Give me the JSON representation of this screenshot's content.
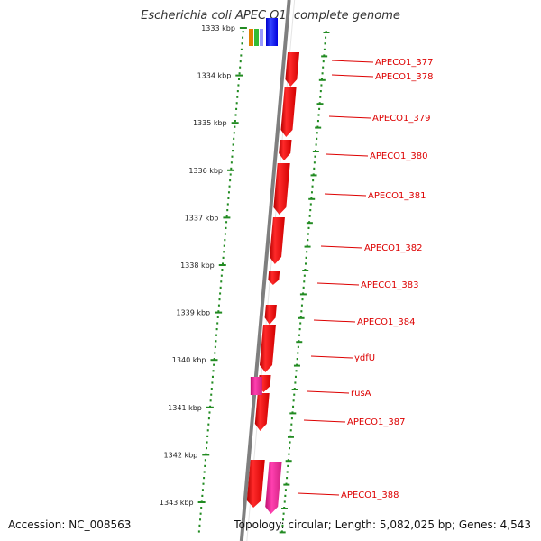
{
  "title": "Escherichia coli APEC O1, complete genome",
  "footer": {
    "accession": "Accession: NC_008563",
    "summary": "Topology: circular; Length: 5,082,025 bp; Genes: 4,543"
  },
  "colors": {
    "backbone": "#7f7f7f",
    "tick": "#228B22",
    "cds": "#ff0000",
    "cds_alt": "#e0208f",
    "label": "#dd0000"
  },
  "scale_ticks": [
    {
      "label": "1333 kbp"
    },
    {
      "label": "1334 kbp"
    },
    {
      "label": "1335 kbp"
    },
    {
      "label": "1336 kbp"
    },
    {
      "label": "1337 kbp"
    },
    {
      "label": "1338 kbp"
    },
    {
      "label": "1339 kbp"
    },
    {
      "label": "1340 kbp"
    },
    {
      "label": "1341 kbp"
    },
    {
      "label": "1342 kbp"
    },
    {
      "label": "1343 kbp"
    }
  ],
  "genes": [
    {
      "name": "APECO1_377"
    },
    {
      "name": "APECO1_378"
    },
    {
      "name": "APECO1_379"
    },
    {
      "name": "APECO1_380"
    },
    {
      "name": "APECO1_381"
    },
    {
      "name": "APECO1_382"
    },
    {
      "name": "APECO1_383"
    },
    {
      "name": "APECO1_384"
    },
    {
      "name": "ydfU"
    },
    {
      "name": "rusA"
    },
    {
      "name": "APECO1_387"
    },
    {
      "name": "APECO1_388"
    }
  ]
}
